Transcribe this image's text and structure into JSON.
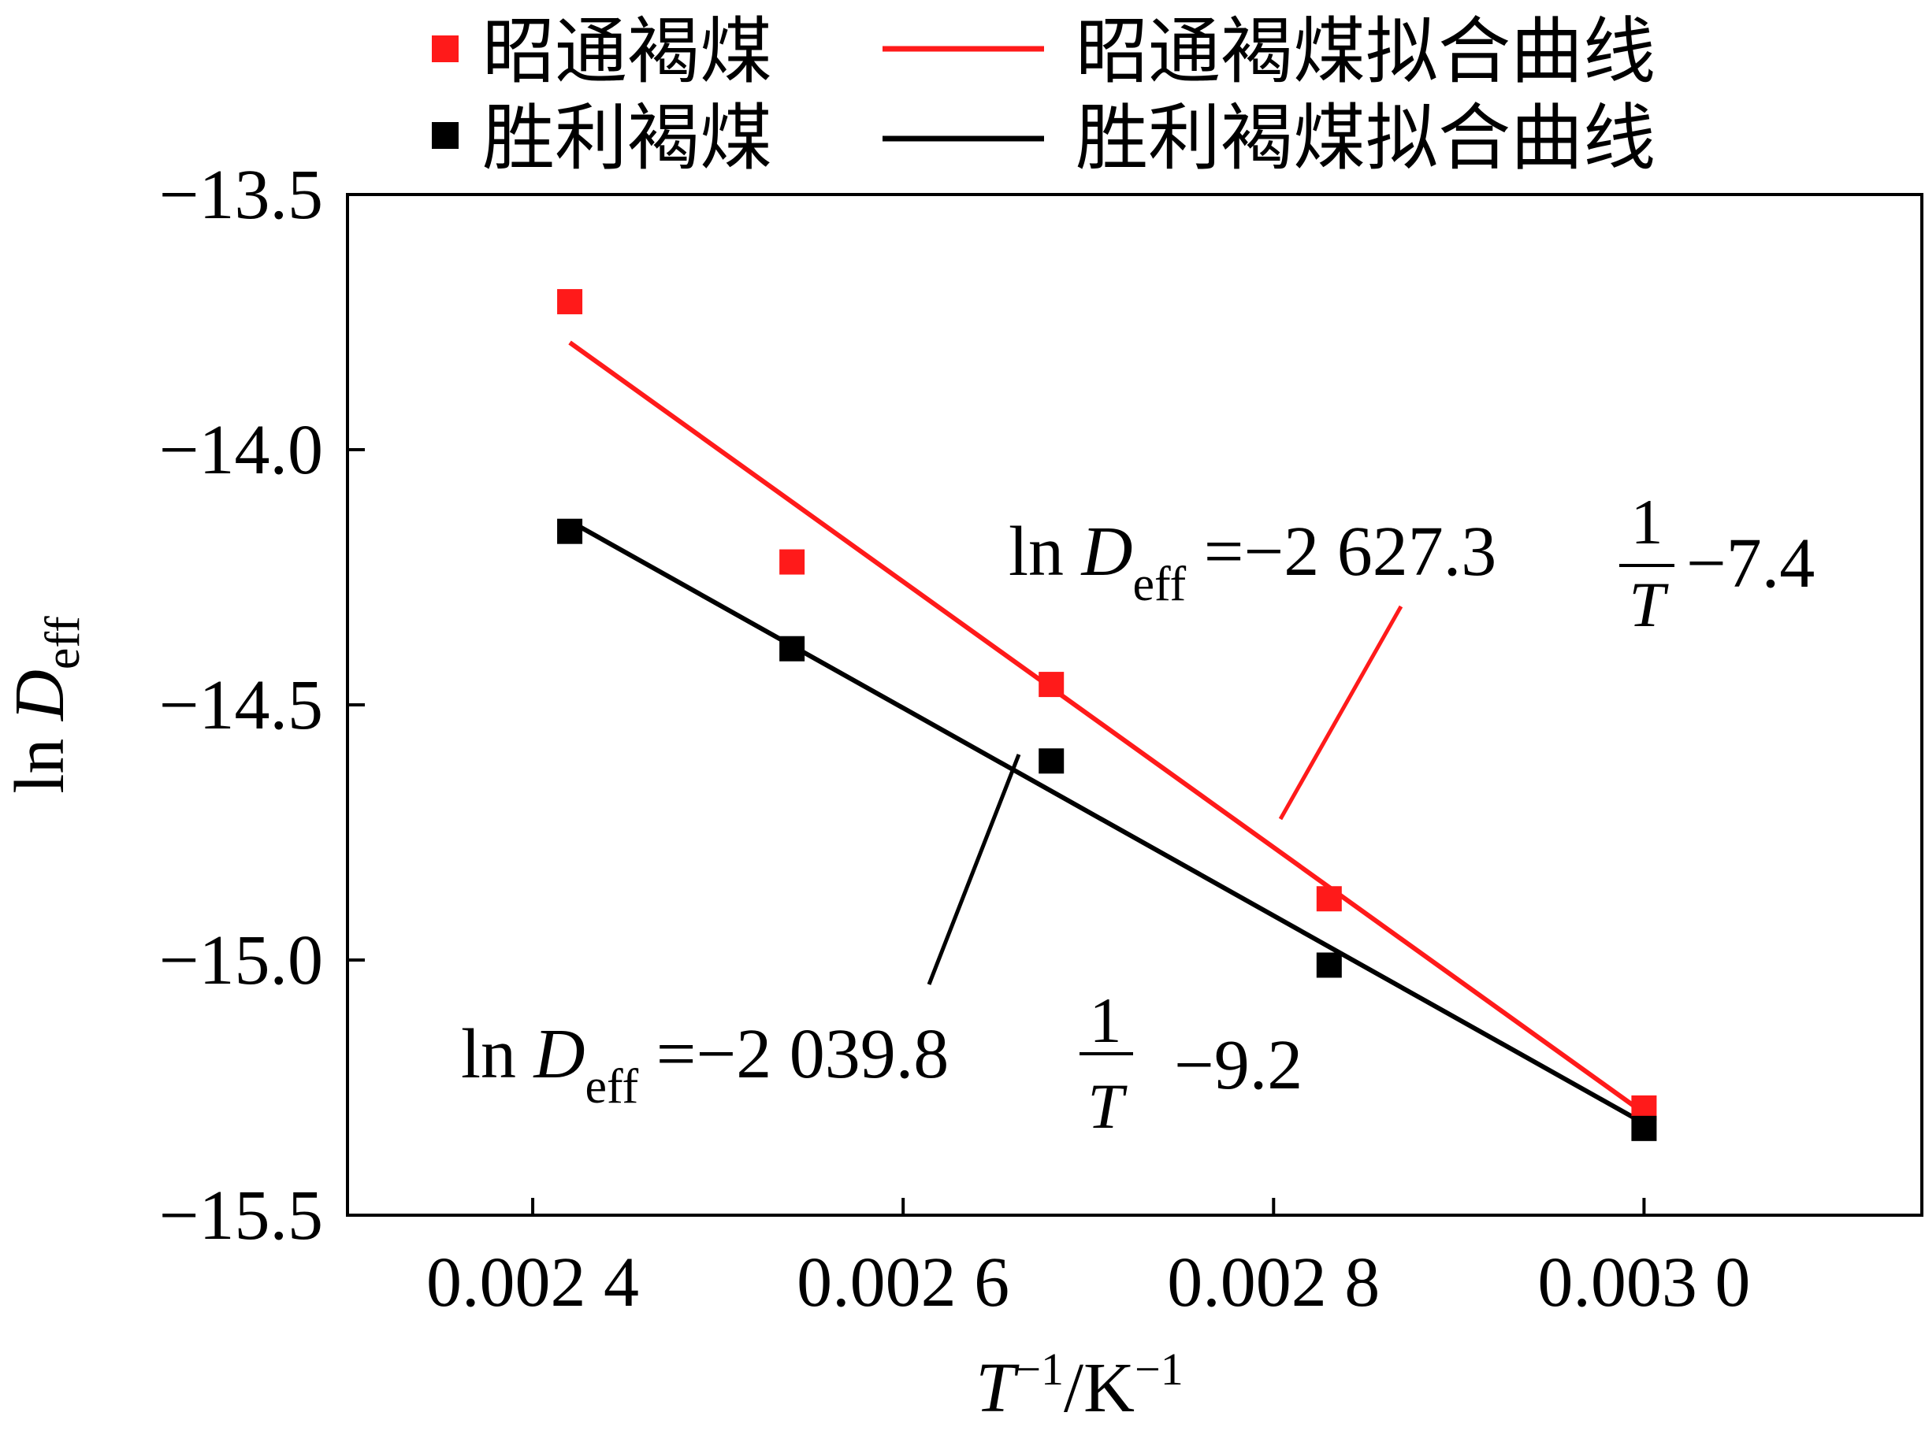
{
  "chart_data": {
    "type": "scatter",
    "xlabel": {
      "main": "T",
      "sup1": "−1",
      "mid": "/K",
      "sup2": "−1"
    },
    "ylabel": {
      "main": "ln ",
      "var": "D",
      "sub": "eff"
    },
    "xlim": [
      0.0023,
      0.00315
    ],
    "ylim": [
      -15.5,
      -13.5
    ],
    "xticks": [
      0.0024,
      0.0026,
      0.0028,
      0.003
    ],
    "xtick_labels": [
      "0.002 4",
      "0.002 6",
      "0.002 8",
      "0.003 0"
    ],
    "yticks": [
      -13.5,
      -14.0,
      -14.5,
      -15.0,
      -15.5
    ],
    "ytick_labels": [
      "−13.5",
      "−14.0",
      "−14.5",
      "−15.0",
      "−15.5"
    ],
    "series": [
      {
        "name": "昭通褐煤",
        "fit_name": "昭通褐煤拟合曲线",
        "color": "#ff1a1a",
        "x": [
          0.00242,
          0.00254,
          0.00268,
          0.00283,
          0.003
        ],
        "y": [
          -13.71,
          -14.22,
          -14.46,
          -14.88,
          -15.29
        ],
        "fit": {
          "slope": -2627.3,
          "intercept": -7.4,
          "x_range": [
            0.00242,
            0.003
          ],
          "y_range": [
            -13.79,
            -15.3
          ]
        },
        "equation": {
          "lhs": "ln ",
          "var": "D",
          "sub": "eff",
          "coef": " =−2 627.3",
          "num": "1",
          "den": "T",
          "const": "−7.4"
        }
      },
      {
        "name": "胜利褐煤",
        "fit_name": "胜利褐煤拟合曲线",
        "color": "#000000",
        "x": [
          0.00242,
          0.00254,
          0.00268,
          0.00283,
          0.003
        ],
        "y": [
          -14.16,
          -14.39,
          -14.61,
          -15.01,
          -15.33
        ],
        "fit": {
          "slope": -2039.8,
          "intercept": -9.2,
          "x_range": [
            0.00242,
            0.003
          ],
          "y_range": [
            -14.14,
            -15.32
          ]
        },
        "equation": {
          "lhs": "ln ",
          "var": "D",
          "sub": "eff",
          "coef": " =−2 039.8",
          "num": "1",
          "den": "T",
          "const": "−9.2"
        }
      }
    ],
    "legend": {
      "placement": "top"
    }
  }
}
